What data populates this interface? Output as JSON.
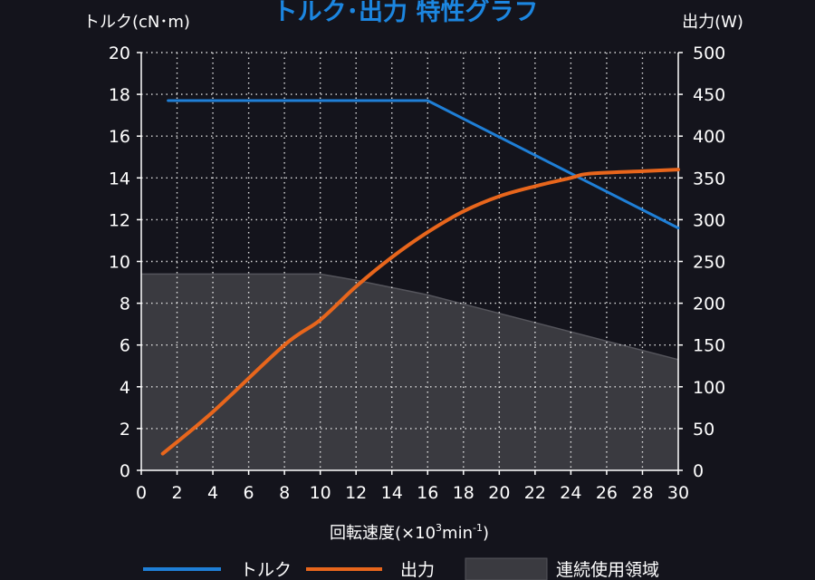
{
  "chart_data": {
    "type": "line",
    "title": "トルク･出力  特性グラフ",
    "y_left_label": "トルク(cN･m)",
    "y_right_label": "出力(W)",
    "xlabel_main": "回転速度(×10",
    "xlabel_exp": "3",
    "xlabel_unit": "min",
    "xlabel_unit_exp": "-1",
    "xlabel_close": ")",
    "xlim": [
      0,
      30
    ],
    "ylim_left": [
      0,
      20
    ],
    "ylim_right": [
      0,
      500
    ],
    "x_ticks": [
      "0",
      "2",
      "4",
      "6",
      "8",
      "10",
      "12",
      "14",
      "16",
      "18",
      "20",
      "22",
      "24",
      "26",
      "28",
      "30"
    ],
    "y_left_ticks": [
      "0",
      "2",
      "4",
      "6",
      "8",
      "10",
      "12",
      "14",
      "16",
      "18",
      "20"
    ],
    "y_right_ticks": [
      "0",
      "50",
      "100",
      "150",
      "200",
      "250",
      "300",
      "350",
      "400",
      "450",
      "500"
    ],
    "grid": true,
    "series": [
      {
        "name": "トルク",
        "axis": "left",
        "color": "#1f7fd6",
        "x": [
          1.5,
          16,
          30
        ],
        "y": [
          17.7,
          17.7,
          11.6
        ]
      },
      {
        "name": "出力",
        "axis": "right",
        "color": "#e8661c",
        "x": [
          1.2,
          4,
          8,
          10,
          12,
          14,
          16,
          18,
          20,
          22,
          24,
          25,
          28,
          30
        ],
        "y": [
          20,
          70,
          150,
          180,
          220,
          255,
          285,
          310,
          328,
          340,
          350,
          355,
          358,
          360
        ]
      }
    ],
    "area": {
      "name": "連続使用領域",
      "axis": "left",
      "color": "#3a3a40",
      "x": [
        0,
        10,
        12,
        16,
        30
      ],
      "y": [
        9.4,
        9.4,
        9.1,
        8.4,
        5.3
      ]
    },
    "legend": {
      "placement": "bottom",
      "items": [
        {
          "label": "トルク",
          "kind": "line",
          "color": "#1f7fd6"
        },
        {
          "label": "出力",
          "kind": "line",
          "color": "#e8661c"
        },
        {
          "label": "連続使用領域",
          "kind": "area",
          "color": "#3a3a40"
        }
      ]
    }
  }
}
